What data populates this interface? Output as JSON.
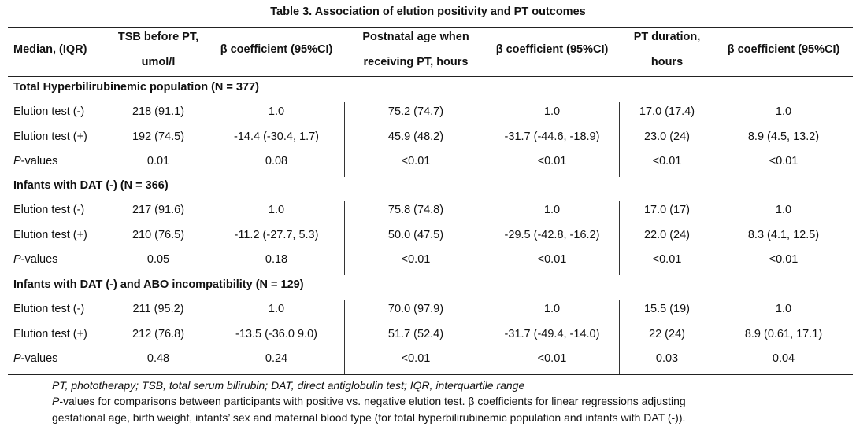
{
  "table": {
    "title": "Table 3. Association of elution positivity and PT outcomes",
    "headers": {
      "median": "Median, (IQR)",
      "tsb_line1": "TSB before PT,",
      "tsb_line2": "umol/l",
      "beta1": "β coefficient (95%CI)",
      "age_line1": "Postnatal age when",
      "age_line2": "receiving PT, hours",
      "beta2": "β coefficient (95%CI)",
      "dur_line1": "PT duration,",
      "dur_line2": "hours",
      "beta3": "β coefficient (95%CI)"
    },
    "sections": [
      {
        "label": "Total Hyperbilirubinemic population (N = 377)",
        "rows": [
          {
            "label": "Elution test (-)",
            "tsb": "218 (91.1)",
            "beta1": "1.0",
            "age": "75.2 (74.7)",
            "beta2": "1.0",
            "dur": "17.0 (17.4)",
            "beta3": "1.0"
          },
          {
            "label": "Elution test (+)",
            "tsb": "192 (74.5)",
            "beta1": "-14.4 (-30.4, 1.7)",
            "age": "45.9 (48.2)",
            "beta2": "-31.7 (-44.6, -18.9)",
            "dur": "23.0 (24)",
            "beta3": "8.9 (4.5, 13.2)"
          },
          {
            "label_italic": "P",
            "label_rest": "-values",
            "tsb": "0.01",
            "beta1": "0.08",
            "age": "<0.01",
            "beta2": "<0.01",
            "dur": "<0.01",
            "beta3": "<0.01"
          }
        ]
      },
      {
        "label": "Infants with DAT (-) (N = 366)",
        "rows": [
          {
            "label": "Elution test (-)",
            "tsb": "217 (91.6)",
            "beta1": "1.0",
            "age": "75.8 (74.8)",
            "beta2": "1.0",
            "dur": "17.0 (17)",
            "beta3": "1.0"
          },
          {
            "label": "Elution test (+)",
            "tsb": "210 (76.5)",
            "beta1": "-11.2 (-27.7, 5.3)",
            "age": "50.0 (47.5)",
            "beta2": "-29.5 (-42.8, -16.2)",
            "dur": "22.0 (24)",
            "beta3": "8.3 (4.1, 12.5)"
          },
          {
            "label_italic": "P",
            "label_rest": "-values",
            "tsb": "0.05",
            "beta1": "0.18",
            "age": "<0.01",
            "beta2": "<0.01",
            "dur": "<0.01",
            "beta3": "<0.01"
          }
        ]
      },
      {
        "label": "Infants with DAT (-) and ABO incompatibility (N = 129)",
        "rows": [
          {
            "label": "Elution test (-)",
            "tsb": "211 (95.2)",
            "beta1": "1.0",
            "age": "70.0 (97.9)",
            "beta2": "1.0",
            "dur": "15.5 (19)",
            "beta3": "1.0"
          },
          {
            "label": "Elution test (+)",
            "tsb": "212 (76.8)",
            "beta1": "-13.5 (-36.0 9.0)",
            "age": "51.7 (52.4)",
            "beta2": "-31.7 (-49.4, -14.0)",
            "dur": "22 (24)",
            "beta3": "8.9 (0.61, 17.1)"
          },
          {
            "label_italic": "P",
            "label_rest": "-values",
            "tsb": "0.48",
            "beta1": "0.24",
            "age": "<0.01",
            "beta2": "<0.01",
            "dur": "0.03",
            "beta3": "0.04"
          }
        ]
      }
    ],
    "footnotes": {
      "abbrev": "PT, phototherapy; TSB, total serum bilirubin; DAT, direct antiglobulin test; IQR, interquartile range",
      "pvalues_italic": "P",
      "pvalues_rest": "-values for comparisons between participants with positive vs. negative elution test. β coefficients for linear regressions adjusting",
      "pvalues_line2": "gestational age, birth weight, infants’ sex and maternal blood type (for total hyperbilirubinemic population and infants with DAT (-))."
    }
  }
}
